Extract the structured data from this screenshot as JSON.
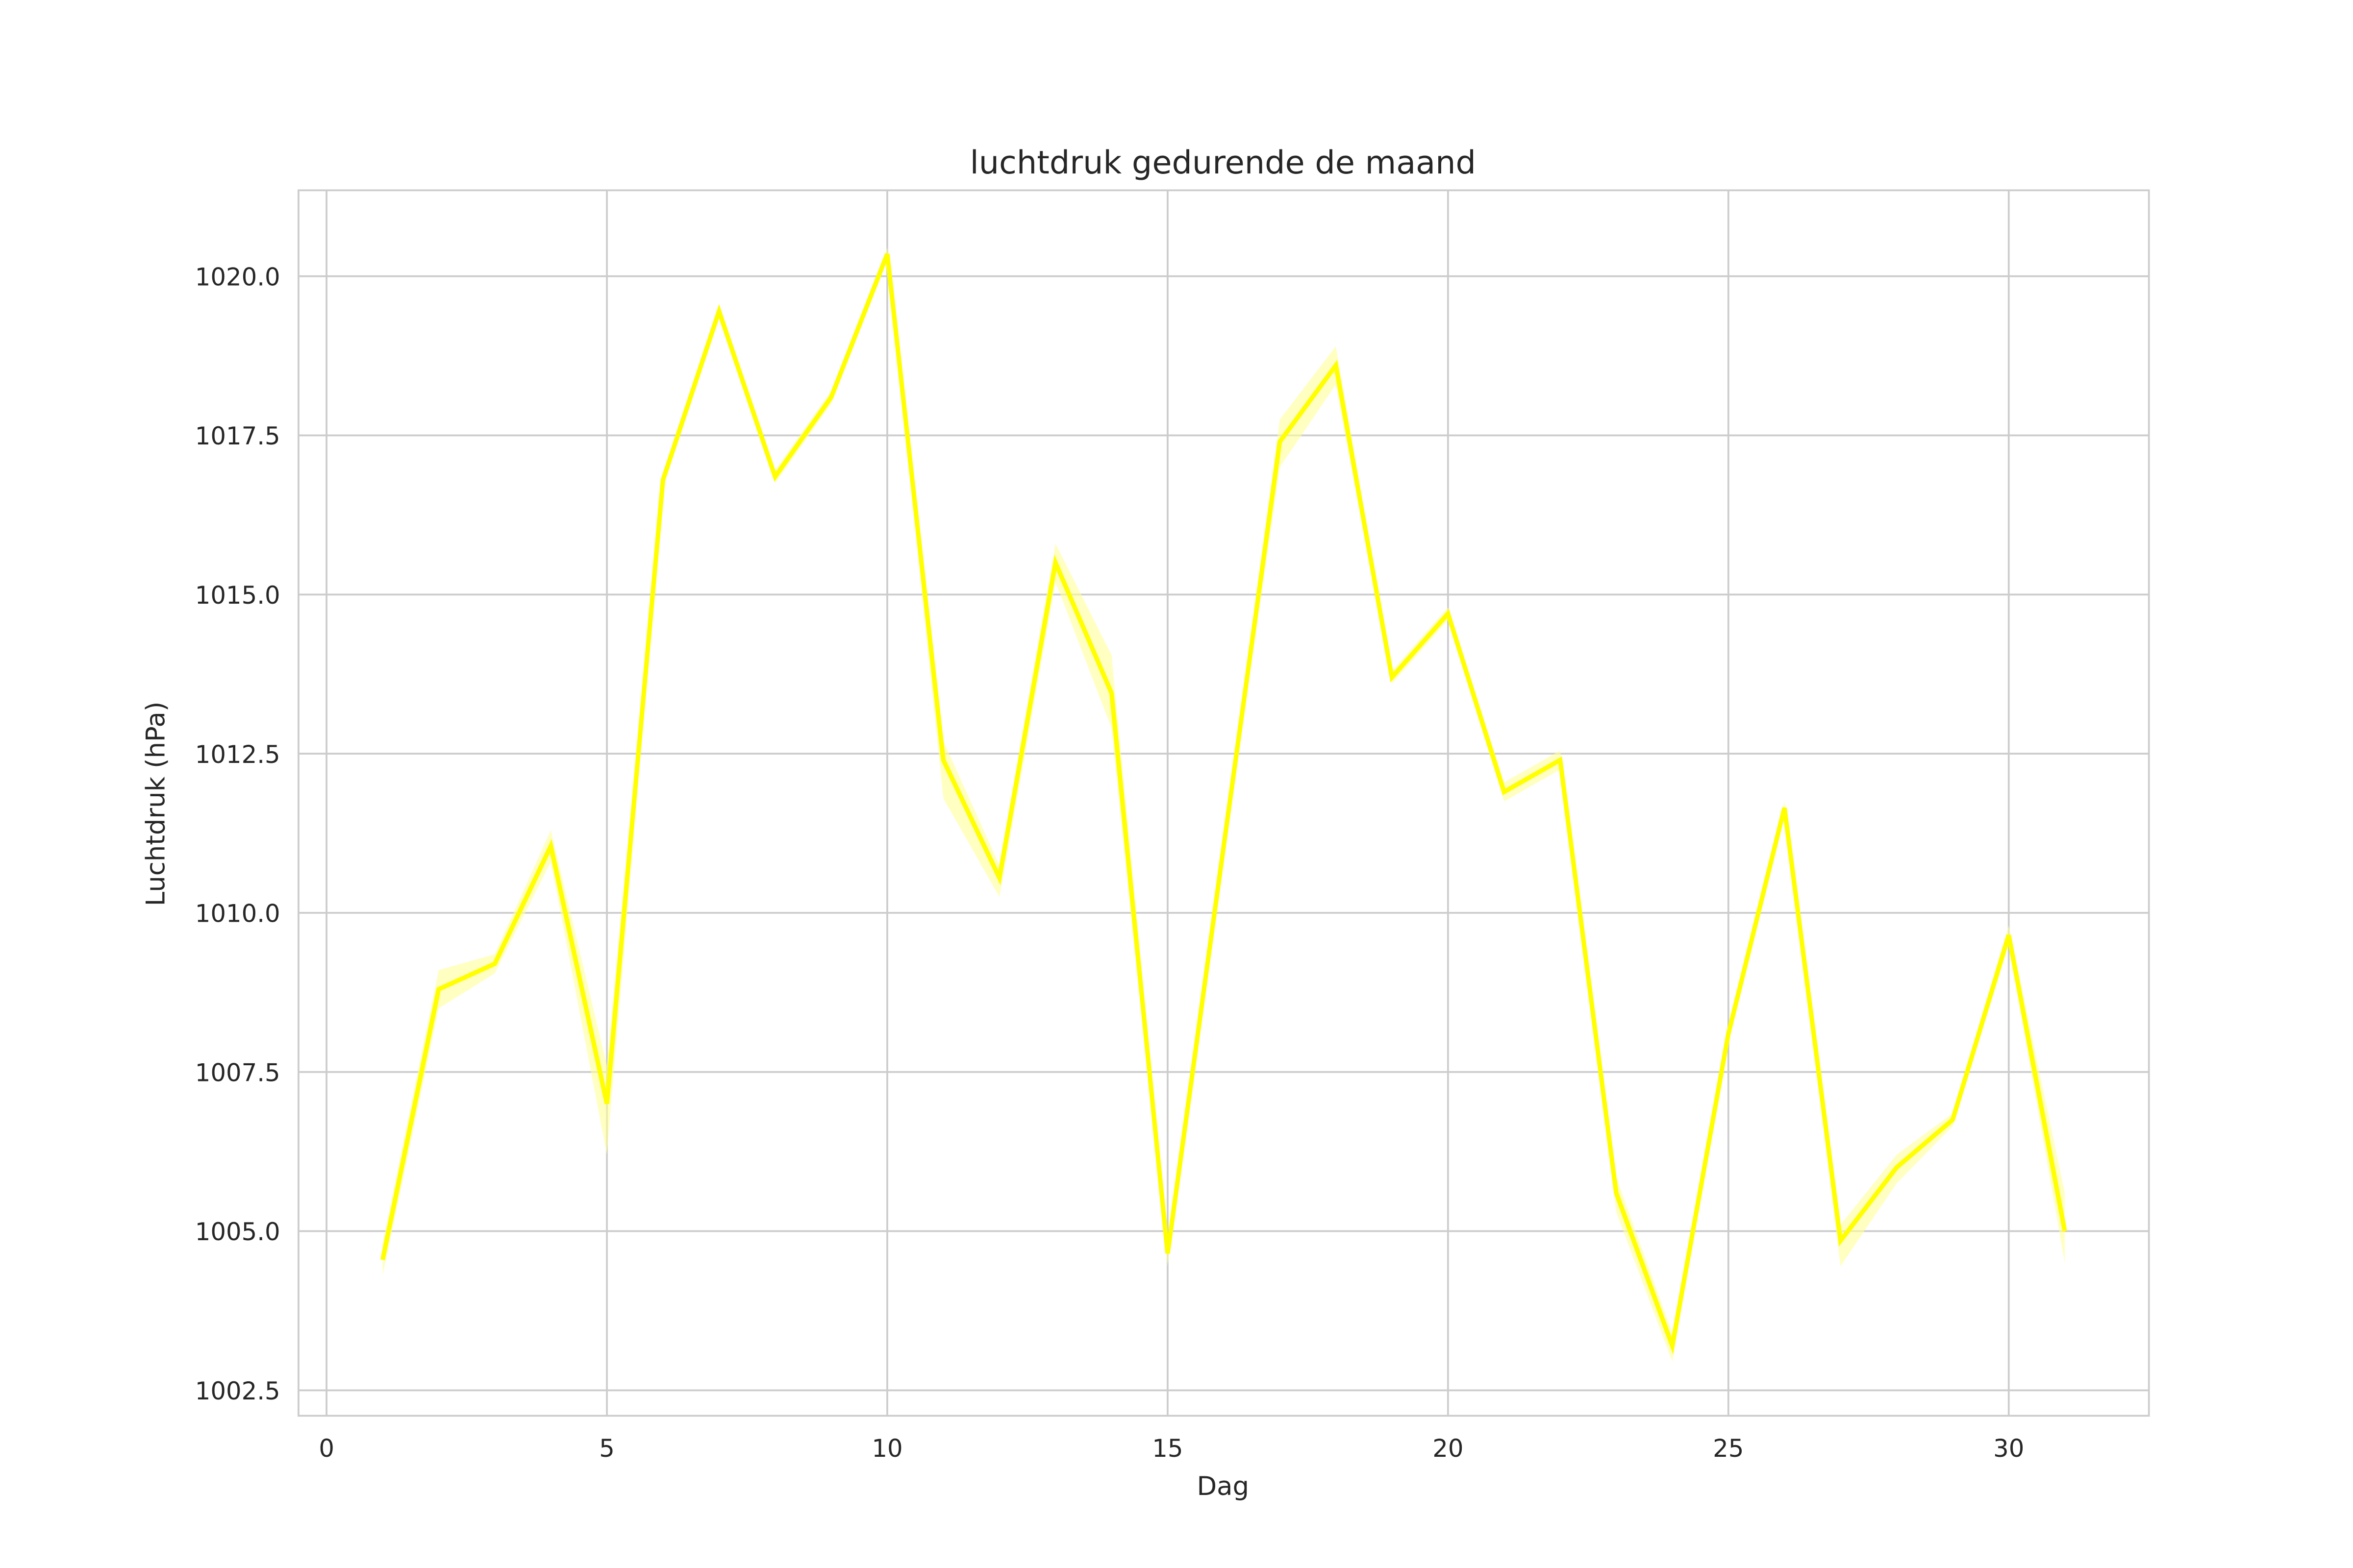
{
  "chart_data": {
    "type": "line",
    "title": "luchtdruk gedurende de maand",
    "xlabel": "Dag",
    "ylabel": "Luchtdruk (hPa)",
    "xlim": [
      -0.5,
      32.5
    ],
    "ylim": [
      1002.1,
      1021.35
    ],
    "xticks": [
      0,
      5,
      10,
      15,
      20,
      25,
      30
    ],
    "yticks": [
      1002.5,
      1005.0,
      1007.5,
      1010.0,
      1012.5,
      1015.0,
      1017.5,
      1020.0
    ],
    "grid": true,
    "line_color": "#ffff00",
    "band_color": "#ffff99",
    "series": [
      {
        "x": [
          1,
          2,
          3,
          4,
          5,
          6,
          7,
          8,
          9,
          10,
          11,
          12,
          13,
          14,
          15,
          16,
          17,
          18,
          19,
          20,
          21,
          22,
          23,
          24,
          25,
          26,
          27,
          28,
          29,
          30,
          31
        ],
        "y": [
          1004.55,
          1008.8,
          1009.2,
          1011.05,
          1007.0,
          1016.8,
          1019.45,
          1016.85,
          1018.1,
          1020.35,
          1012.4,
          1010.55,
          1015.5,
          1013.45,
          1004.65,
          1011.05,
          1017.4,
          1018.6,
          1013.7,
          1014.7,
          1011.9,
          1012.4,
          1005.6,
          1003.2,
          1008.1,
          1011.65,
          1004.85,
          1006.0,
          1006.75,
          1009.65,
          1005.0
        ],
        "ci_low": [
          1004.3,
          1008.5,
          1009.05,
          1010.8,
          1006.2,
          1016.7,
          1019.35,
          1016.75,
          1018.0,
          1020.25,
          1011.8,
          1010.25,
          1015.2,
          1012.9,
          1004.45,
          1010.95,
          1017.0,
          1018.3,
          1013.6,
          1014.6,
          1011.75,
          1012.25,
          1005.3,
          1002.95,
          1008.0,
          1011.55,
          1004.45,
          1005.75,
          1006.65,
          1009.5,
          1004.5
        ],
        "ci_high": [
          1004.8,
          1009.1,
          1009.35,
          1011.3,
          1007.6,
          1016.9,
          1019.55,
          1016.95,
          1018.2,
          1020.45,
          1012.7,
          1010.75,
          1015.8,
          1014.05,
          1004.85,
          1011.15,
          1017.75,
          1018.9,
          1013.8,
          1014.8,
          1012.05,
          1012.55,
          1005.85,
          1003.4,
          1008.2,
          1011.75,
          1005.1,
          1006.2,
          1006.85,
          1009.8,
          1005.6
        ]
      }
    ]
  }
}
